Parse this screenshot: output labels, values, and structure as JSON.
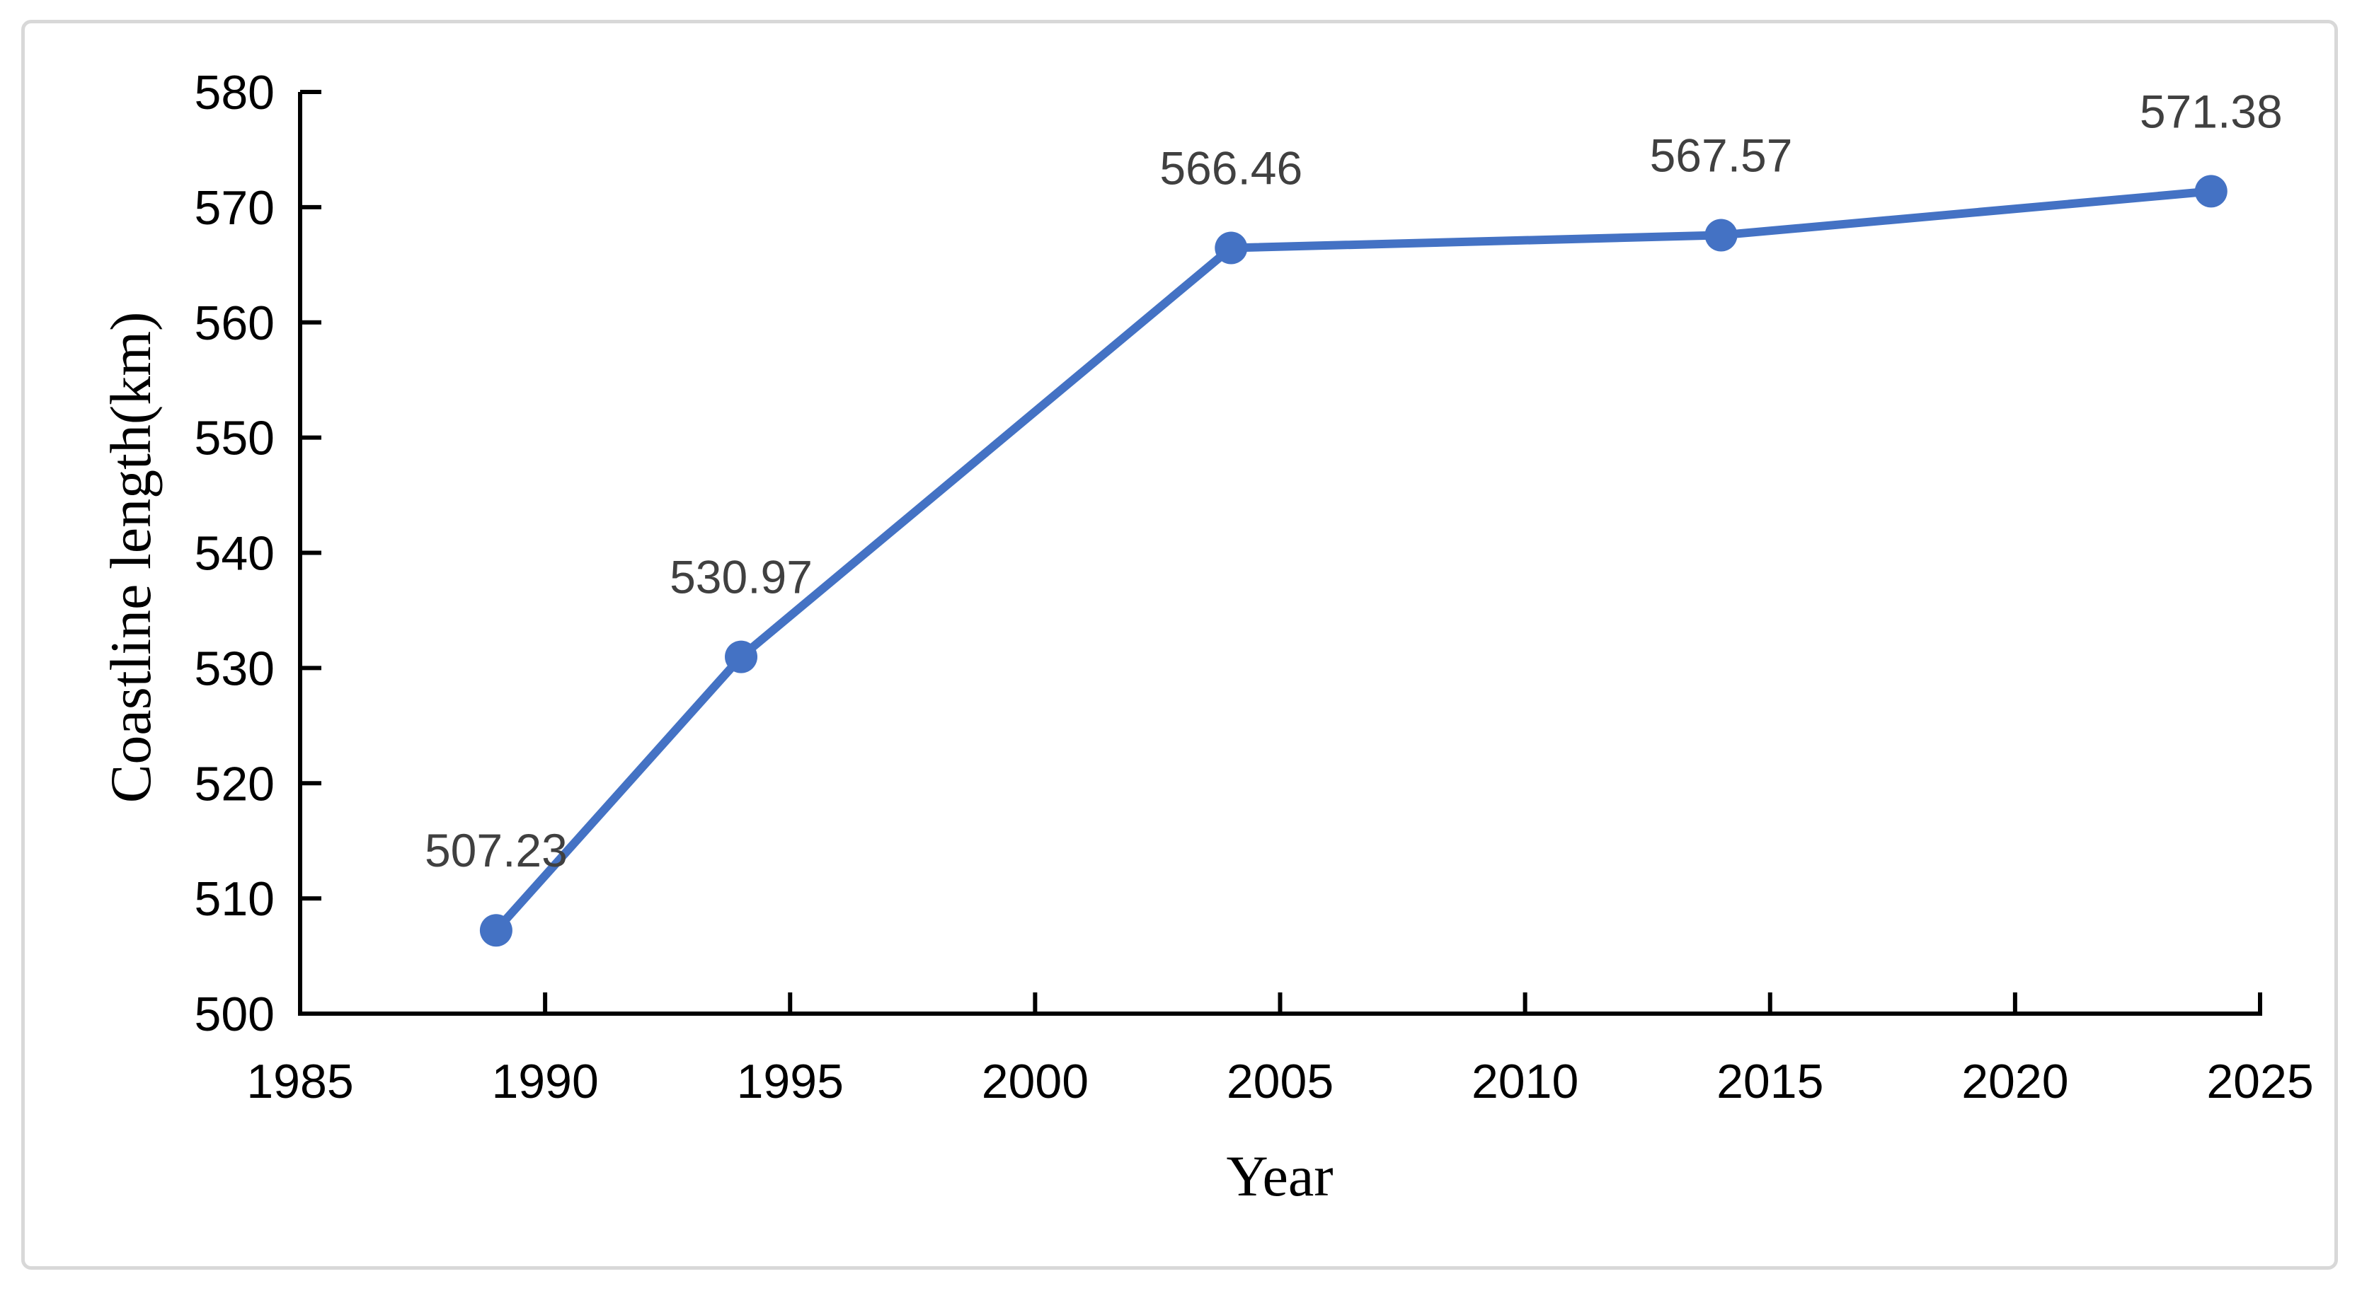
{
  "frame": {
    "border_color": "#d8d8d8",
    "background": "#ffffff"
  },
  "chart_data": {
    "type": "line",
    "title": "",
    "xlabel": "Year",
    "ylabel": "Coastline length(km)",
    "x": [
      1989,
      1994,
      2004,
      2014,
      2024
    ],
    "series": [
      {
        "name": "Coastline length",
        "values": [
          507.23,
          530.97,
          566.46,
          567.57,
          571.38
        ],
        "point_labels": [
          "507.23",
          "530.97",
          "566.46",
          "567.57",
          "571.38"
        ],
        "color": "#4472C4"
      }
    ],
    "xlim": [
      1985,
      2025
    ],
    "ylim": [
      500,
      580
    ],
    "x_ticks": [
      1985,
      1990,
      1995,
      2000,
      2005,
      2010,
      2015,
      2020,
      2025
    ],
    "y_ticks": [
      500,
      510,
      520,
      530,
      540,
      550,
      560,
      570,
      580
    ],
    "grid": false,
    "legend_position": "none",
    "tick_style": "inside",
    "axis_color": "#000000",
    "data_label_color": "#404040"
  }
}
